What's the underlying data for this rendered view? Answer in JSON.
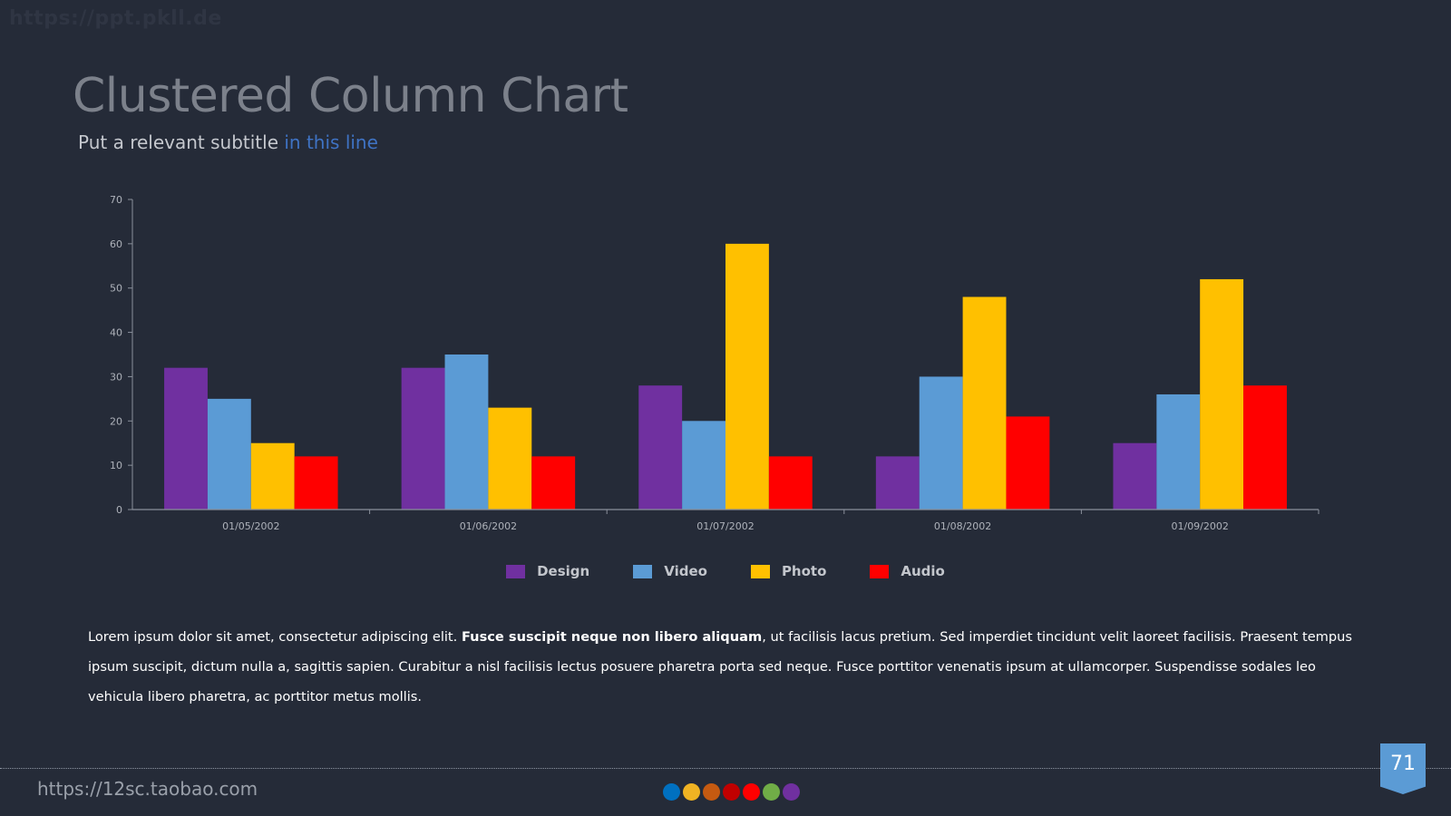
{
  "watermark": "https://ppt.pkll.de",
  "slide": {
    "title": "Clustered Column Chart",
    "subtitle_plain": "Put a relevant subtitle ",
    "subtitle_accent": "in this line",
    "accent_color": "#3f73c4"
  },
  "chart_data": {
    "type": "bar",
    "categories": [
      "01/05/2002",
      "01/06/2002",
      "01/07/2002",
      "01/08/2002",
      "01/09/2002"
    ],
    "series": [
      {
        "name": "Design",
        "color": "#7030a0",
        "values": [
          32,
          32,
          28,
          12,
          15
        ]
      },
      {
        "name": "Video",
        "color": "#5b9bd5",
        "values": [
          25,
          35,
          20,
          30,
          26
        ]
      },
      {
        "name": "Photo",
        "color": "#ffc000",
        "values": [
          15,
          23,
          60,
          48,
          52
        ]
      },
      {
        "name": "Audio",
        "color": "#ff0000",
        "values": [
          12,
          12,
          12,
          21,
          28
        ]
      }
    ],
    "ylim": [
      0,
      70
    ],
    "yticks": [
      0,
      10,
      20,
      30,
      40,
      50,
      60,
      70
    ],
    "grid": false,
    "legend_position": "bottom"
  },
  "body": {
    "text_before": "Lorem ipsum dolor sit amet, consectetur adipiscing elit. ",
    "text_bold": "Fusce suscipit neque non libero aliquam",
    "text_after": ", ut facilisis lacus pretium. Sed imperdiet tincidunt velit laoreet facilisis. Praesent tempus ipsum suscipit, dictum nulla a, sagittis sapien. Curabitur a nisl facilisis lectus posuere pharetra porta sed neque. Fusce porttitor venenatis ipsum at ullamcorper. Suspendisse sodales leo vehicula libero pharetra, ac porttitor metus mollis."
  },
  "footer": {
    "url": "https://12sc.taobao.com",
    "page_number": "71",
    "dot_colors": [
      "#0070c0",
      "#f0b323",
      "#c55a11",
      "#c00000",
      "#ff0000",
      "#70ad47",
      "#7030a0"
    ]
  }
}
